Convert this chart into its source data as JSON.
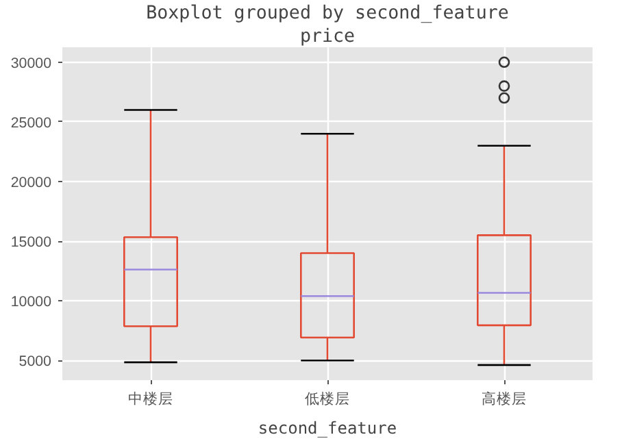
{
  "chart_data": {
    "type": "box",
    "title": "Boxplot grouped by second_feature",
    "subtitle": "price",
    "xlabel": "second_feature",
    "categories": [
      "中楼层",
      "低楼层",
      "高楼层"
    ],
    "boxes": [
      {
        "low": 4850,
        "q1": 7870,
        "median": 12620,
        "q3": 15330,
        "high": 26000
      },
      {
        "low": 5000,
        "q1": 6920,
        "median": 10400,
        "q3": 14000,
        "high": 24000
      },
      {
        "low": 4620,
        "q1": 7950,
        "median": 10670,
        "q3": 15500,
        "high": 23000,
        "outliers": [
          30000,
          28000,
          27000
        ]
      }
    ],
    "color": "#e24a33",
    "ylim": [
      3350,
      31250
    ],
    "yticks": [
      5000,
      10000,
      15000,
      20000,
      25000,
      30000
    ],
    "grid": true
  }
}
